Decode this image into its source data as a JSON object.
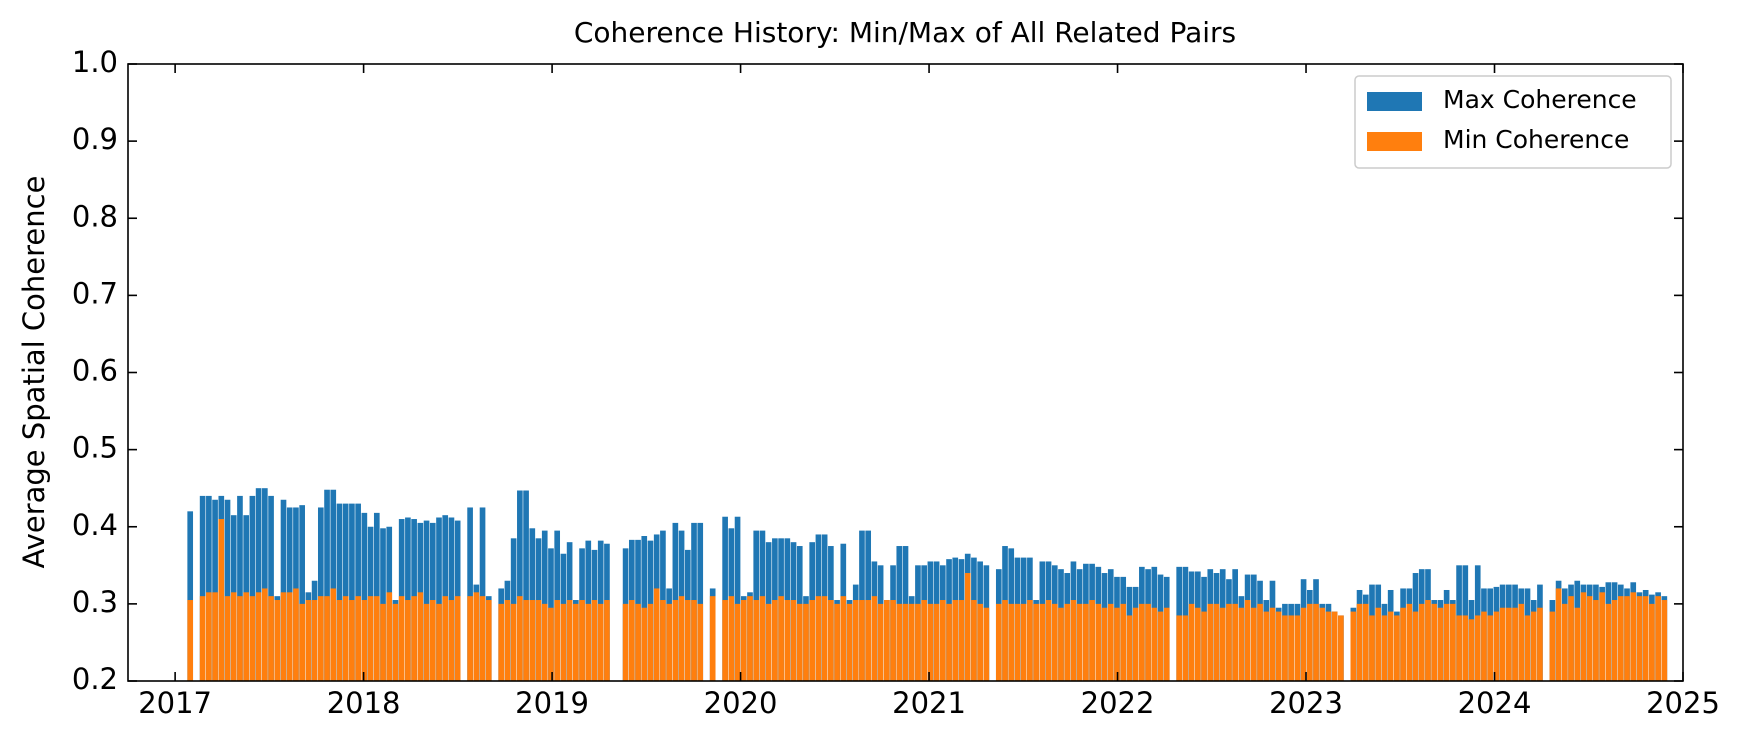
{
  "chart_data": {
    "type": "bar",
    "title": "Coherence History: Min/Max of All Related Pairs",
    "y_label": "Average Spatial Coherence",
    "xlim": [
      2016.75,
      2025.0
    ],
    "xticks": [
      2017,
      2018,
      2019,
      2020,
      2021,
      2022,
      2023,
      2024,
      2025
    ],
    "ylim": [
      0.2,
      1.0
    ],
    "yticks": [
      0.2,
      0.3,
      0.4,
      0.5,
      0.6,
      0.7,
      0.8,
      0.9,
      {
        "value": 1.0,
        "label": "1.0"
      }
    ],
    "legend": "upper right",
    "bar_width": 0.03,
    "x": [
      2017.08,
      2017.146,
      2017.179,
      2017.212,
      2017.245,
      2017.278,
      2017.311,
      2017.344,
      2017.377,
      2017.41,
      2017.443,
      2017.476,
      2017.509,
      2017.542,
      2017.575,
      2017.608,
      2017.641,
      2017.674,
      2017.707,
      2017.74,
      2017.773,
      2017.806,
      2017.839,
      2017.872,
      2017.905,
      2017.938,
      2017.971,
      2018.004,
      2018.037,
      2018.07,
      2018.103,
      2018.136,
      2018.169,
      2018.202,
      2018.235,
      2018.268,
      2018.301,
      2018.334,
      2018.367,
      2018.4,
      2018.433,
      2018.466,
      2018.499,
      2018.565,
      2018.598,
      2018.631,
      2018.664,
      2018.73,
      2018.763,
      2018.796,
      2018.829,
      2018.862,
      2018.895,
      2018.928,
      2018.961,
      2018.994,
      2019.027,
      2019.06,
      2019.093,
      2019.126,
      2019.159,
      2019.192,
      2019.225,
      2019.258,
      2019.291,
      2019.39,
      2019.423,
      2019.456,
      2019.489,
      2019.522,
      2019.555,
      2019.588,
      2019.621,
      2019.654,
      2019.687,
      2019.72,
      2019.753,
      2019.786,
      2019.852,
      2019.918,
      2019.951,
      2019.984,
      2020.017,
      2020.05,
      2020.083,
      2020.116,
      2020.149,
      2020.182,
      2020.215,
      2020.248,
      2020.281,
      2020.314,
      2020.347,
      2020.38,
      2020.413,
      2020.446,
      2020.479,
      2020.512,
      2020.545,
      2020.578,
      2020.611,
      2020.644,
      2020.677,
      2020.71,
      2020.743,
      2020.776,
      2020.809,
      2020.842,
      2020.875,
      2020.908,
      2020.941,
      2020.974,
      2021.007,
      2021.04,
      2021.073,
      2021.106,
      2021.139,
      2021.172,
      2021.205,
      2021.238,
      2021.271,
      2021.304,
      2021.37,
      2021.403,
      2021.436,
      2021.469,
      2021.502,
      2021.535,
      2021.568,
      2021.601,
      2021.634,
      2021.667,
      2021.7,
      2021.733,
      2021.766,
      2021.799,
      2021.832,
      2021.865,
      2021.898,
      2021.931,
      2021.964,
      2021.997,
      2022.03,
      2022.063,
      2022.096,
      2022.129,
      2022.162,
      2022.195,
      2022.228,
      2022.261,
      2022.327,
      2022.36,
      2022.393,
      2022.426,
      2022.459,
      2022.492,
      2022.525,
      2022.558,
      2022.591,
      2022.624,
      2022.657,
      2022.69,
      2022.723,
      2022.756,
      2022.789,
      2022.822,
      2022.855,
      2022.888,
      2022.921,
      2022.954,
      2022.987,
      2023.02,
      2023.053,
      2023.086,
      2023.119,
      2023.152,
      2023.185,
      2023.251,
      2023.284,
      2023.317,
      2023.35,
      2023.383,
      2023.416,
      2023.449,
      2023.482,
      2023.515,
      2023.548,
      2023.581,
      2023.614,
      2023.647,
      2023.68,
      2023.713,
      2023.746,
      2023.779,
      2023.812,
      2023.845,
      2023.878,
      2023.911,
      2023.944,
      2023.977,
      2024.01,
      2024.043,
      2024.076,
      2024.109,
      2024.142,
      2024.175,
      2024.208,
      2024.241,
      2024.307,
      2024.34,
      2024.373,
      2024.406,
      2024.439,
      2024.472,
      2024.505,
      2024.538,
      2024.571,
      2024.604,
      2024.637,
      2024.67,
      2024.703,
      2024.736,
      2024.769,
      2024.802,
      2024.835,
      2024.868,
      2024.901
    ],
    "series": [
      {
        "name": "Max Coherence",
        "color": "#1f77b4",
        "values": [
          0.42,
          0.44,
          0.44,
          0.435,
          0.44,
          0.435,
          0.415,
          0.44,
          0.415,
          0.44,
          0.45,
          0.45,
          0.44,
          0.31,
          0.435,
          0.425,
          0.425,
          0.428,
          0.315,
          0.33,
          0.425,
          0.448,
          0.448,
          0.43,
          0.43,
          0.43,
          0.43,
          0.418,
          0.4,
          0.418,
          0.398,
          0.4,
          0.305,
          0.41,
          0.412,
          0.41,
          0.405,
          0.408,
          0.405,
          0.412,
          0.415,
          0.412,
          0.408,
          0.425,
          0.325,
          0.425,
          0.31,
          0.32,
          0.33,
          0.385,
          0.447,
          0.447,
          0.398,
          0.385,
          0.395,
          0.372,
          0.395,
          0.365,
          0.38,
          0.305,
          0.372,
          0.382,
          0.37,
          0.382,
          0.378,
          0.372,
          0.383,
          0.383,
          0.388,
          0.382,
          0.39,
          0.395,
          0.32,
          0.405,
          0.395,
          0.37,
          0.405,
          0.405,
          0.32,
          0.413,
          0.398,
          0.413,
          0.31,
          0.315,
          0.395,
          0.395,
          0.38,
          0.385,
          0.385,
          0.385,
          0.38,
          0.375,
          0.31,
          0.38,
          0.39,
          0.39,
          0.375,
          0.305,
          0.378,
          0.305,
          0.325,
          0.395,
          0.395,
          0.355,
          0.35,
          0.305,
          0.35,
          0.375,
          0.375,
          0.31,
          0.35,
          0.35,
          0.355,
          0.355,
          0.35,
          0.358,
          0.36,
          0.358,
          0.365,
          0.36,
          0.355,
          0.35,
          0.345,
          0.375,
          0.372,
          0.36,
          0.36,
          0.36,
          0.305,
          0.355,
          0.355,
          0.35,
          0.345,
          0.34,
          0.355,
          0.345,
          0.352,
          0.352,
          0.348,
          0.34,
          0.345,
          0.335,
          0.335,
          0.322,
          0.322,
          0.348,
          0.345,
          0.348,
          0.338,
          0.335,
          0.348,
          0.348,
          0.342,
          0.342,
          0.335,
          0.345,
          0.34,
          0.345,
          0.332,
          0.345,
          0.31,
          0.338,
          0.338,
          0.33,
          0.305,
          0.33,
          0.295,
          0.3,
          0.3,
          0.3,
          0.332,
          0.318,
          0.332,
          0.3,
          0.3,
          0.29,
          0.285,
          0.295,
          0.318,
          0.312,
          0.325,
          0.325,
          0.3,
          0.318,
          0.29,
          0.32,
          0.32,
          0.34,
          0.345,
          0.345,
          0.305,
          0.305,
          0.318,
          0.305,
          0.35,
          0.35,
          0.305,
          0.35,
          0.32,
          0.32,
          0.322,
          0.325,
          0.325,
          0.325,
          0.32,
          0.32,
          0.305,
          0.325,
          0.305,
          0.33,
          0.32,
          0.325,
          0.33,
          0.325,
          0.325,
          0.325,
          0.322,
          0.328,
          0.328,
          0.325,
          0.32,
          0.328,
          0.315,
          0.318,
          0.312,
          0.315,
          0.31
        ]
      },
      {
        "name": "Min Coherence",
        "color": "#ff7f0e",
        "values": [
          0.305,
          0.31,
          0.315,
          0.315,
          0.41,
          0.31,
          0.315,
          0.31,
          0.315,
          0.31,
          0.315,
          0.32,
          0.31,
          0.305,
          0.315,
          0.315,
          0.32,
          0.3,
          0.305,
          0.305,
          0.31,
          0.31,
          0.32,
          0.305,
          0.31,
          0.305,
          0.31,
          0.305,
          0.31,
          0.31,
          0.3,
          0.315,
          0.3,
          0.31,
          0.305,
          0.31,
          0.315,
          0.3,
          0.305,
          0.3,
          0.31,
          0.305,
          0.31,
          0.31,
          0.315,
          0.31,
          0.305,
          0.3,
          0.305,
          0.3,
          0.31,
          0.305,
          0.305,
          0.305,
          0.3,
          0.295,
          0.305,
          0.3,
          0.305,
          0.3,
          0.305,
          0.3,
          0.305,
          0.3,
          0.305,
          0.3,
          0.305,
          0.3,
          0.295,
          0.3,
          0.32,
          0.305,
          0.3,
          0.305,
          0.31,
          0.305,
          0.305,
          0.3,
          0.31,
          0.305,
          0.31,
          0.3,
          0.305,
          0.31,
          0.305,
          0.31,
          0.3,
          0.305,
          0.31,
          0.305,
          0.305,
          0.3,
          0.3,
          0.305,
          0.31,
          0.31,
          0.305,
          0.3,
          0.31,
          0.3,
          0.305,
          0.305,
          0.305,
          0.31,
          0.3,
          0.305,
          0.305,
          0.3,
          0.3,
          0.3,
          0.3,
          0.305,
          0.3,
          0.3,
          0.305,
          0.3,
          0.305,
          0.305,
          0.34,
          0.305,
          0.3,
          0.295,
          0.3,
          0.305,
          0.3,
          0.3,
          0.3,
          0.305,
          0.3,
          0.3,
          0.305,
          0.3,
          0.295,
          0.3,
          0.305,
          0.3,
          0.3,
          0.305,
          0.3,
          0.295,
          0.3,
          0.295,
          0.3,
          0.285,
          0.295,
          0.3,
          0.3,
          0.295,
          0.29,
          0.295,
          0.285,
          0.285,
          0.3,
          0.295,
          0.29,
          0.3,
          0.3,
          0.295,
          0.3,
          0.3,
          0.295,
          0.305,
          0.295,
          0.3,
          0.29,
          0.295,
          0.29,
          0.285,
          0.285,
          0.285,
          0.295,
          0.3,
          0.3,
          0.295,
          0.29,
          0.29,
          0.285,
          0.29,
          0.3,
          0.3,
          0.285,
          0.295,
          0.285,
          0.29,
          0.285,
          0.295,
          0.3,
          0.29,
          0.3,
          0.305,
          0.3,
          0.295,
          0.3,
          0.3,
          0.285,
          0.285,
          0.28,
          0.285,
          0.29,
          0.285,
          0.29,
          0.295,
          0.295,
          0.295,
          0.3,
          0.285,
          0.29,
          0.295,
          0.29,
          0.32,
          0.3,
          0.31,
          0.295,
          0.315,
          0.31,
          0.305,
          0.315,
          0.3,
          0.305,
          0.31,
          0.31,
          0.315,
          0.31,
          0.31,
          0.3,
          0.31,
          0.305
        ]
      }
    ]
  }
}
